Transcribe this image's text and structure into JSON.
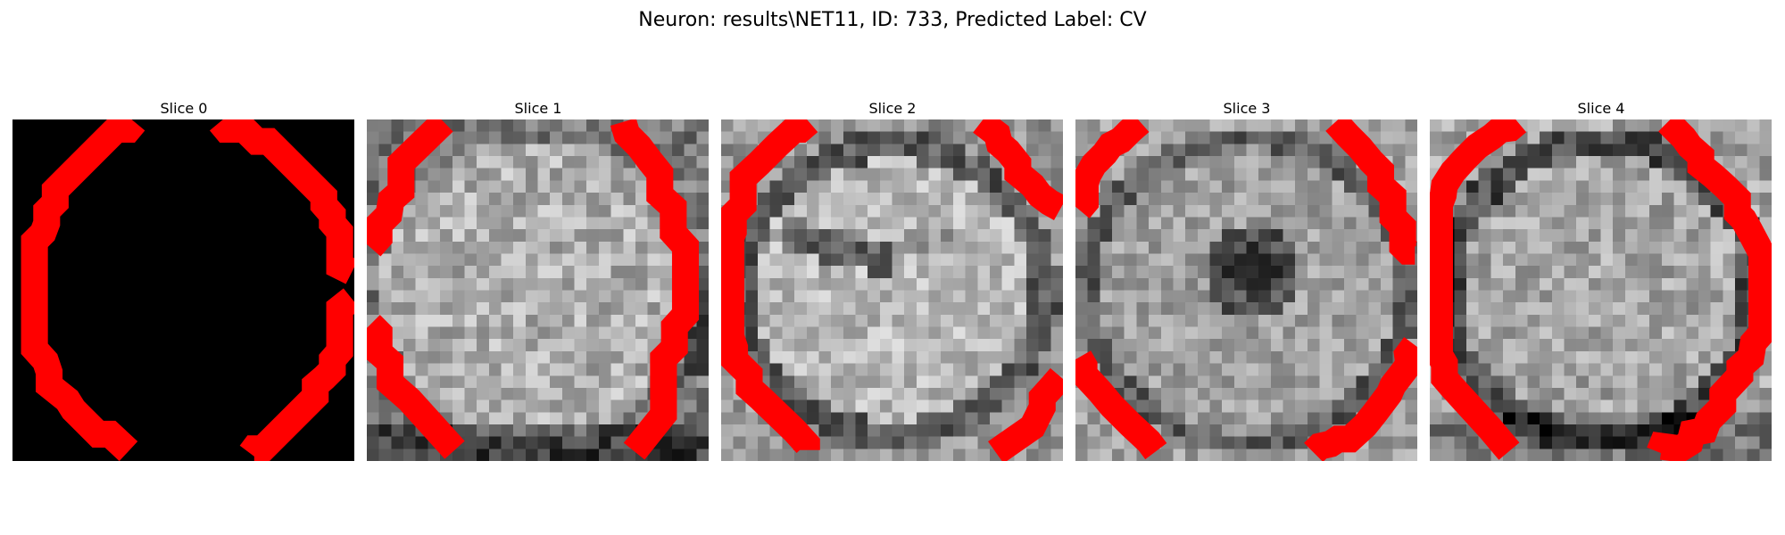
{
  "figure": {
    "title": "Neuron: results\\NET11, ID: 733, Predicted Label: CV",
    "contour_color": "#ff0000",
    "colormap": "gray",
    "grid_size": 28
  },
  "panels": [
    {
      "title": "Slice 0",
      "image": "black-uniform"
    },
    {
      "title": "Slice 1",
      "image": "noisy-grayscale-bright-disc"
    },
    {
      "title": "Slice 2",
      "image": "noisy-grayscale-ring-with-dark-band"
    },
    {
      "title": "Slice 3",
      "image": "noisy-grayscale-dark-center"
    },
    {
      "title": "Slice 4",
      "image": "noisy-grayscale-bright-disc-dark-rim"
    }
  ]
}
